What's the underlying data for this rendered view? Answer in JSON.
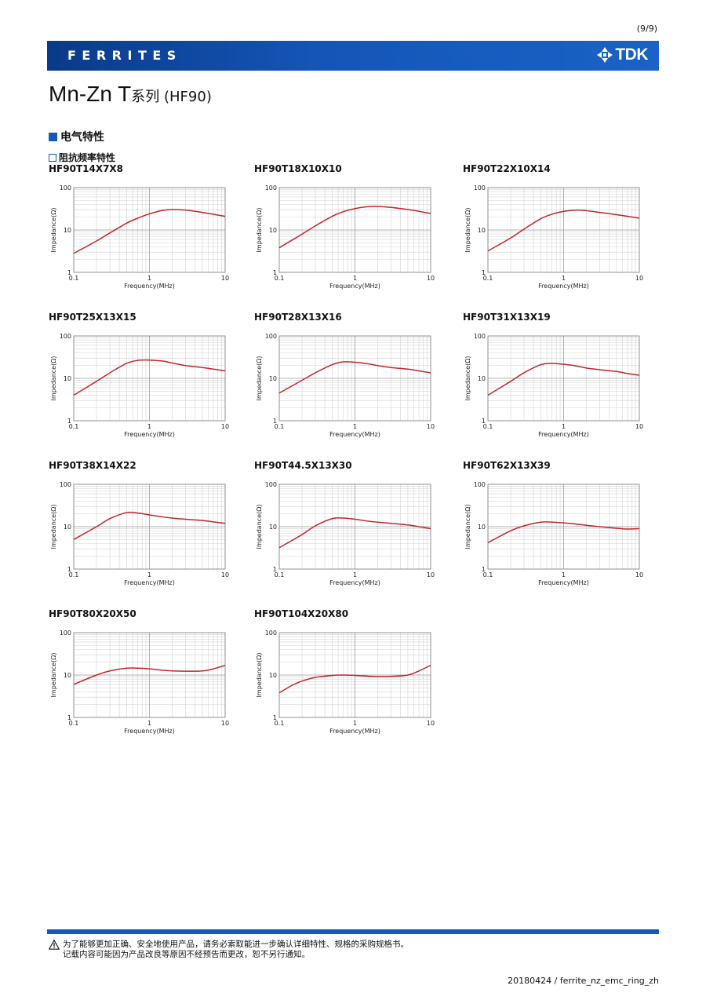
{
  "page_number": "(9/9)",
  "banner": {
    "section": "FERRITES",
    "brand": "TDK",
    "logo_icon": "tdk-logo-icon",
    "color": "#1559b8"
  },
  "title": {
    "main": "Mn-Zn  T",
    "suffix": "系列 (HF90)"
  },
  "section_heading": "电气特性",
  "sub_heading": "阻抗频率特性",
  "axis_text": {
    "xlabel": "Frequency(MHz)",
    "ylabel": "Impedance(Ω)",
    "xticks": [
      "0.1",
      "1",
      "10"
    ],
    "yticks": [
      "1",
      "10",
      "100"
    ]
  },
  "chart_data": [
    {
      "type": "line",
      "title": "HF90T14X7X8",
      "xscale": "log",
      "yscale": "log",
      "xlim": [
        0.1,
        10
      ],
      "ylim": [
        1,
        100
      ],
      "grid": true,
      "line_color": "#c0262d",
      "x": [
        0.1,
        0.2,
        0.3,
        0.5,
        0.7,
        1,
        1.5,
        2,
        3,
        5,
        7,
        10
      ],
      "y": [
        2.8,
        5.5,
        8.5,
        14.5,
        19,
        24,
        29,
        30.5,
        29.5,
        26,
        23.5,
        21
      ]
    },
    {
      "type": "line",
      "title": "HF90T18X10X10",
      "xscale": "log",
      "yscale": "log",
      "xlim": [
        0.1,
        10
      ],
      "ylim": [
        1,
        100
      ],
      "grid": true,
      "line_color": "#c0262d",
      "x": [
        0.1,
        0.2,
        0.3,
        0.5,
        0.7,
        1,
        1.5,
        2,
        3,
        5,
        7,
        10
      ],
      "y": [
        3.8,
        8,
        12.5,
        21,
        27,
        32,
        35.5,
        36,
        34,
        30.5,
        27.5,
        24.5
      ]
    },
    {
      "type": "line",
      "title": "HF90T22X10X14",
      "xscale": "log",
      "yscale": "log",
      "xlim": [
        0.1,
        10
      ],
      "ylim": [
        1,
        100
      ],
      "grid": true,
      "line_color": "#c0262d",
      "x": [
        0.1,
        0.2,
        0.3,
        0.5,
        0.7,
        1,
        1.5,
        2,
        3,
        5,
        7,
        10
      ],
      "y": [
        3.2,
        6.5,
        10.5,
        18.5,
        23.5,
        27.5,
        29.5,
        28.5,
        26,
        23,
        21,
        19
      ]
    },
    {
      "type": "line",
      "title": "HF90T25X13X15",
      "xscale": "log",
      "yscale": "log",
      "xlim": [
        0.1,
        10
      ],
      "ylim": [
        1,
        100
      ],
      "grid": true,
      "line_color": "#c0262d",
      "x": [
        0.1,
        0.2,
        0.3,
        0.5,
        0.7,
        1,
        1.5,
        2,
        3,
        5,
        7,
        10
      ],
      "y": [
        4,
        8.5,
        13.5,
        22.5,
        26.5,
        27,
        25.5,
        23,
        20,
        18,
        16.5,
        15
      ]
    },
    {
      "type": "line",
      "title": "HF90T28X13X16",
      "xscale": "log",
      "yscale": "log",
      "xlim": [
        0.1,
        10
      ],
      "ylim": [
        1,
        100
      ],
      "grid": true,
      "line_color": "#c0262d",
      "x": [
        0.1,
        0.2,
        0.3,
        0.5,
        0.7,
        1,
        1.5,
        2,
        3,
        5,
        7,
        10
      ],
      "y": [
        4.5,
        9,
        13.5,
        21,
        24.5,
        24,
        22,
        20,
        18,
        16.5,
        15,
        13.5
      ]
    },
    {
      "type": "line",
      "title": "HF90T31X13X19",
      "xscale": "log",
      "yscale": "log",
      "xlim": [
        0.1,
        10
      ],
      "ylim": [
        1,
        100
      ],
      "grid": true,
      "line_color": "#c0262d",
      "x": [
        0.1,
        0.2,
        0.3,
        0.5,
        0.7,
        1,
        1.5,
        2,
        3,
        5,
        7,
        10
      ],
      "y": [
        4,
        8.5,
        13.5,
        21,
        22.5,
        21.5,
        19.5,
        17.5,
        16,
        14.5,
        13,
        11.8
      ]
    },
    {
      "type": "line",
      "title": "HF90T38X14X22",
      "xscale": "log",
      "yscale": "log",
      "xlim": [
        0.1,
        10
      ],
      "ylim": [
        1,
        100
      ],
      "grid": true,
      "line_color": "#c0262d",
      "x": [
        0.1,
        0.2,
        0.3,
        0.5,
        0.7,
        1,
        1.5,
        2,
        3,
        5,
        7,
        10
      ],
      "y": [
        5,
        10,
        15.5,
        21.5,
        21,
        19,
        17,
        16,
        15,
        14,
        13,
        12
      ]
    },
    {
      "type": "line",
      "title": "HF90T44.5X13X30",
      "xscale": "log",
      "yscale": "log",
      "xlim": [
        0.1,
        10
      ],
      "ylim": [
        1,
        100
      ],
      "grid": true,
      "line_color": "#c0262d",
      "x": [
        0.1,
        0.2,
        0.3,
        0.5,
        0.7,
        1,
        1.5,
        2,
        3,
        5,
        7,
        10
      ],
      "y": [
        3.2,
        6.5,
        10.5,
        15.5,
        16,
        15,
        13.5,
        12.8,
        12,
        11,
        10,
        9
      ]
    },
    {
      "type": "line",
      "title": "HF90T62X13X39",
      "xscale": "log",
      "yscale": "log",
      "xlim": [
        0.1,
        10
      ],
      "ylim": [
        1,
        100
      ],
      "grid": true,
      "line_color": "#c0262d",
      "x": [
        0.1,
        0.2,
        0.3,
        0.5,
        0.7,
        1,
        1.5,
        2,
        3,
        5,
        7,
        10
      ],
      "y": [
        4.2,
        8,
        10.5,
        12.8,
        12.8,
        12.3,
        11.5,
        10.8,
        10,
        9.2,
        8.8,
        9
      ]
    },
    {
      "type": "line",
      "title": "HF90T80X20X50",
      "xscale": "log",
      "yscale": "log",
      "xlim": [
        0.1,
        10
      ],
      "ylim": [
        1,
        100
      ],
      "grid": true,
      "line_color": "#c0262d",
      "x": [
        0.1,
        0.2,
        0.3,
        0.5,
        0.7,
        1,
        1.5,
        2,
        3,
        5,
        7,
        10
      ],
      "y": [
        6,
        10,
        12.5,
        14.5,
        14.5,
        14,
        13,
        12.5,
        12.3,
        12.5,
        14,
        17
      ]
    },
    {
      "type": "line",
      "title": "HF90T104X20X80",
      "xscale": "log",
      "yscale": "log",
      "xlim": [
        0.1,
        10
      ],
      "ylim": [
        1,
        100
      ],
      "grid": true,
      "line_color": "#c0262d",
      "x": [
        0.1,
        0.15,
        0.2,
        0.3,
        0.5,
        0.7,
        1,
        1.5,
        2,
        3,
        5,
        7,
        10
      ],
      "y": [
        3.8,
        5.8,
        7.2,
        8.8,
        9.8,
        10,
        9.8,
        9.4,
        9.2,
        9.3,
        10,
        12.5,
        17
      ]
    }
  ],
  "footer": {
    "notice_line1": "为了能够更加正确、安全地使用产品，请务必索取能进一步确认详细特性、规格的采购规格书。",
    "notice_line2": "记载内容可能因为产品改良等原因不经预告而更改，恕不另行通知。",
    "code": "20180424 / ferrite_nz_emc_ring_zh"
  }
}
